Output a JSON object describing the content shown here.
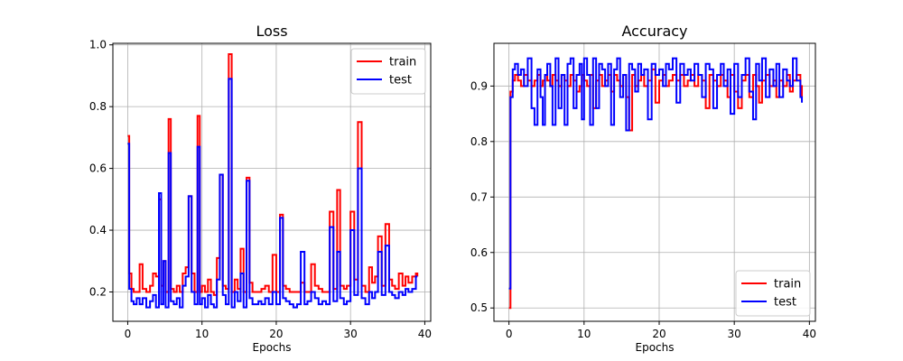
{
  "chart_data": [
    {
      "type": "line",
      "title": "Loss",
      "xlabel": "Epochs",
      "ylabel": "",
      "xlim": [
        -2,
        40.8
      ],
      "ylim": [
        0.105,
        1.005
      ],
      "xticks": [
        0,
        10,
        20,
        30,
        40
      ],
      "yticks": [
        0.2,
        0.4,
        0.6,
        0.8,
        1.0
      ],
      "ytick_labels": [
        "0.2",
        "0.4",
        "0.6",
        "0.8",
        "1.0"
      ],
      "grid": true,
      "legend_position": "top-right",
      "series": [
        {
          "name": "train",
          "color": "#ff0000",
          "step": true,
          "x": [
            0,
            0.2,
            0.5,
            0.8,
            1.2,
            1.6,
            2,
            2.5,
            3,
            3.4,
            3.8,
            4.2,
            4.5,
            4.8,
            5.1,
            5.5,
            5.8,
            6.2,
            6.6,
            7,
            7.4,
            7.8,
            8.2,
            8.6,
            9,
            9.4,
            9.7,
            10,
            10.4,
            10.8,
            11.2,
            11.6,
            12,
            12.4,
            12.8,
            13.2,
            13.6,
            14,
            14.4,
            14.8,
            15.2,
            15.6,
            16,
            16.4,
            16.8,
            17.2,
            17.6,
            18,
            18.5,
            19,
            19.5,
            20,
            20.5,
            20.9,
            21.3,
            21.8,
            22.3,
            22.8,
            23.3,
            23.8,
            24.2,
            24.7,
            25.2,
            25.7,
            26.2,
            26.7,
            27.2,
            27.7,
            28.2,
            28.6,
            29.1,
            29.5,
            30,
            30.5,
            31,
            31.5,
            32,
            32.5,
            32.9,
            33.3,
            33.7,
            34.2,
            34.7,
            35.2,
            35.6,
            36,
            36.5,
            37,
            37.4,
            37.8,
            38.3,
            38.8,
            39
          ],
          "y": [
            0.705,
            0.26,
            0.21,
            0.2,
            0.2,
            0.29,
            0.21,
            0.2,
            0.22,
            0.26,
            0.25,
            0.5,
            0.22,
            0.3,
            0.2,
            0.76,
            0.21,
            0.2,
            0.22,
            0.2,
            0.26,
            0.28,
            0.51,
            0.26,
            0.2,
            0.77,
            0.2,
            0.22,
            0.2,
            0.24,
            0.2,
            0.19,
            0.31,
            0.58,
            0.22,
            0.21,
            0.97,
            0.2,
            0.24,
            0.21,
            0.34,
            0.2,
            0.57,
            0.23,
            0.2,
            0.2,
            0.2,
            0.21,
            0.22,
            0.2,
            0.32,
            0.2,
            0.45,
            0.22,
            0.21,
            0.2,
            0.2,
            0.2,
            0.23,
            0.2,
            0.2,
            0.29,
            0.22,
            0.21,
            0.2,
            0.2,
            0.46,
            0.21,
            0.53,
            0.22,
            0.21,
            0.22,
            0.46,
            0.24,
            0.75,
            0.22,
            0.2,
            0.28,
            0.23,
            0.25,
            0.38,
            0.22,
            0.42,
            0.24,
            0.22,
            0.21,
            0.26,
            0.22,
            0.25,
            0.23,
            0.25,
            0.26,
            0.25
          ]
        },
        {
          "name": "test",
          "color": "#0000ff",
          "step": true,
          "x": [
            0,
            0.2,
            0.5,
            0.8,
            1.2,
            1.6,
            2,
            2.5,
            3,
            3.4,
            3.8,
            4.2,
            4.5,
            4.8,
            5.1,
            5.5,
            5.8,
            6.2,
            6.6,
            7,
            7.4,
            7.8,
            8.2,
            8.6,
            9,
            9.4,
            9.7,
            10,
            10.4,
            10.8,
            11.2,
            11.6,
            12,
            12.4,
            12.8,
            13.2,
            13.6,
            14,
            14.4,
            14.8,
            15.2,
            15.6,
            16,
            16.4,
            16.8,
            17.2,
            17.6,
            18,
            18.5,
            19,
            19.5,
            20,
            20.5,
            20.9,
            21.3,
            21.8,
            22.3,
            22.8,
            23.3,
            23.8,
            24.2,
            24.7,
            25.2,
            25.7,
            26.2,
            26.7,
            27.2,
            27.7,
            28.2,
            28.6,
            29.1,
            29.5,
            30,
            30.5,
            31,
            31.5,
            32,
            32.5,
            32.9,
            33.3,
            33.7,
            34.2,
            34.7,
            35.2,
            35.6,
            36,
            36.5,
            37,
            37.4,
            37.8,
            38.3,
            38.8,
            39
          ],
          "y": [
            0.68,
            0.21,
            0.17,
            0.16,
            0.18,
            0.16,
            0.18,
            0.15,
            0.17,
            0.19,
            0.15,
            0.52,
            0.16,
            0.3,
            0.15,
            0.65,
            0.17,
            0.16,
            0.18,
            0.15,
            0.22,
            0.25,
            0.51,
            0.2,
            0.16,
            0.67,
            0.16,
            0.18,
            0.15,
            0.19,
            0.16,
            0.15,
            0.24,
            0.58,
            0.19,
            0.16,
            0.89,
            0.15,
            0.2,
            0.17,
            0.26,
            0.15,
            0.56,
            0.18,
            0.16,
            0.16,
            0.17,
            0.16,
            0.18,
            0.16,
            0.2,
            0.16,
            0.44,
            0.18,
            0.17,
            0.16,
            0.15,
            0.16,
            0.33,
            0.16,
            0.17,
            0.2,
            0.18,
            0.16,
            0.17,
            0.16,
            0.41,
            0.17,
            0.33,
            0.18,
            0.16,
            0.17,
            0.4,
            0.19,
            0.6,
            0.18,
            0.16,
            0.2,
            0.18,
            0.2,
            0.33,
            0.19,
            0.35,
            0.2,
            0.19,
            0.18,
            0.2,
            0.19,
            0.21,
            0.2,
            0.21,
            0.25,
            0.25
          ]
        }
      ]
    },
    {
      "type": "line",
      "title": "Accuracy",
      "xlabel": "Epochs",
      "ylabel": "",
      "xlim": [
        -2,
        40.8
      ],
      "ylim": [
        0.476,
        0.977
      ],
      "xticks": [
        0,
        10,
        20,
        30,
        40
      ],
      "yticks": [
        0.5,
        0.6,
        0.7,
        0.8,
        0.9
      ],
      "ytick_labels": [
        "0.5",
        "0.6",
        "0.7",
        "0.8",
        "0.9"
      ],
      "grid": true,
      "legend_position": "bottom-right",
      "series": [
        {
          "name": "train",
          "color": "#ff0000",
          "step": true,
          "x": [
            0,
            0.2,
            0.5,
            0.8,
            1.2,
            1.6,
            2,
            2.5,
            3,
            3.4,
            3.8,
            4.2,
            4.5,
            4.8,
            5.1,
            5.5,
            5.8,
            6.2,
            6.6,
            7,
            7.4,
            7.8,
            8.2,
            8.6,
            9,
            9.4,
            9.7,
            10,
            10.4,
            10.8,
            11.2,
            11.6,
            12,
            12.4,
            12.8,
            13.2,
            13.6,
            14,
            14.4,
            14.8,
            15.2,
            15.6,
            16,
            16.4,
            16.8,
            17.2,
            17.6,
            18,
            18.5,
            19,
            19.5,
            20,
            20.5,
            20.9,
            21.3,
            21.8,
            22.3,
            22.8,
            23.3,
            23.8,
            24.2,
            24.7,
            25.2,
            25.7,
            26.2,
            26.7,
            27.2,
            27.7,
            28.2,
            28.6,
            29.1,
            29.5,
            30,
            30.5,
            31,
            31.5,
            32,
            32.5,
            32.9,
            33.3,
            33.7,
            34.2,
            34.7,
            35.2,
            35.6,
            36,
            36.5,
            37,
            37.4,
            37.8,
            38.3,
            38.8,
            39
          ],
          "y": [
            0.5,
            0.89,
            0.91,
            0.92,
            0.91,
            0.9,
            0.92,
            0.91,
            0.9,
            0.91,
            0.92,
            0.9,
            0.91,
            0.92,
            0.91,
            0.9,
            0.92,
            0.91,
            0.9,
            0.92,
            0.91,
            0.9,
            0.92,
            0.91,
            0.89,
            0.9,
            0.92,
            0.91,
            0.9,
            0.92,
            0.86,
            0.91,
            0.92,
            0.9,
            0.91,
            0.92,
            0.89,
            0.92,
            0.91,
            0.9,
            0.92,
            0.88,
            0.82,
            0.92,
            0.9,
            0.91,
            0.92,
            0.9,
            0.91,
            0.93,
            0.87,
            0.91,
            0.92,
            0.9,
            0.91,
            0.92,
            0.91,
            0.92,
            0.9,
            0.91,
            0.92,
            0.9,
            0.92,
            0.91,
            0.86,
            0.92,
            0.91,
            0.9,
            0.92,
            0.91,
            0.88,
            0.92,
            0.89,
            0.86,
            0.91,
            0.92,
            0.88,
            0.92,
            0.9,
            0.87,
            0.91,
            0.92,
            0.9,
            0.91,
            0.88,
            0.91,
            0.9,
            0.92,
            0.89,
            0.91,
            0.92,
            0.9,
            0.88
          ]
        },
        {
          "name": "test",
          "color": "#0000ff",
          "step": true,
          "x": [
            0,
            0.2,
            0.5,
            0.8,
            1.2,
            1.6,
            2,
            2.5,
            3,
            3.4,
            3.8,
            4.2,
            4.5,
            4.8,
            5.1,
            5.5,
            5.8,
            6.2,
            6.6,
            7,
            7.4,
            7.8,
            8.2,
            8.6,
            9,
            9.4,
            9.7,
            10,
            10.4,
            10.8,
            11.2,
            11.6,
            12,
            12.4,
            12.8,
            13.2,
            13.6,
            14,
            14.4,
            14.8,
            15.2,
            15.6,
            16,
            16.4,
            16.8,
            17.2,
            17.6,
            18,
            18.5,
            19,
            19.5,
            20,
            20.5,
            20.9,
            21.3,
            21.8,
            22.3,
            22.8,
            23.3,
            23.8,
            24.2,
            24.7,
            25.2,
            25.7,
            26.2,
            26.7,
            27.2,
            27.7,
            28.2,
            28.6,
            29.1,
            29.5,
            30,
            30.5,
            31,
            31.5,
            32,
            32.5,
            32.9,
            33.3,
            33.7,
            34.2,
            34.7,
            35.2,
            35.6,
            36,
            36.5,
            37,
            37.4,
            37.8,
            38.3,
            38.8,
            39
          ],
          "y": [
            0.535,
            0.88,
            0.93,
            0.94,
            0.92,
            0.93,
            0.9,
            0.95,
            0.86,
            0.83,
            0.93,
            0.88,
            0.83,
            0.92,
            0.94,
            0.9,
            0.83,
            0.95,
            0.86,
            0.92,
            0.83,
            0.94,
            0.95,
            0.86,
            0.92,
            0.94,
            0.84,
            0.95,
            0.92,
            0.83,
            0.95,
            0.86,
            0.94,
            0.93,
            0.9,
            0.94,
            0.83,
            0.93,
            0.95,
            0.88,
            0.92,
            0.82,
            0.94,
            0.93,
            0.89,
            0.94,
            0.92,
            0.93,
            0.84,
            0.94,
            0.92,
            0.93,
            0.9,
            0.94,
            0.93,
            0.95,
            0.87,
            0.94,
            0.92,
            0.93,
            0.91,
            0.94,
            0.92,
            0.88,
            0.94,
            0.93,
            0.86,
            0.92,
            0.94,
            0.9,
            0.93,
            0.85,
            0.94,
            0.88,
            0.92,
            0.95,
            0.89,
            0.84,
            0.94,
            0.91,
            0.95,
            0.88,
            0.93,
            0.9,
            0.94,
            0.88,
            0.93,
            0.91,
            0.9,
            0.95,
            0.91,
            0.88,
            0.87
          ]
        }
      ]
    }
  ]
}
